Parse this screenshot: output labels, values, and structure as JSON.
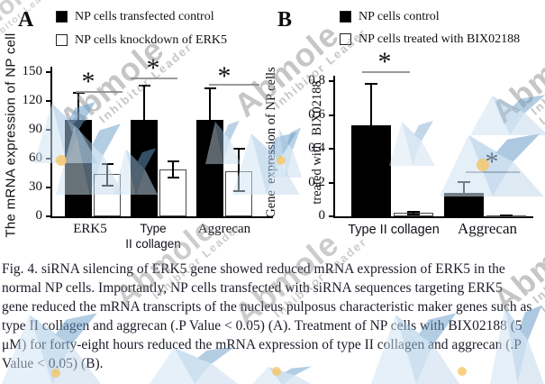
{
  "watermark": {
    "brand": "Abmole",
    "tagline": "Inhibitor Leader"
  },
  "figure": {
    "caption_lines": [
      "Fig. 4. siRNA silencing of ERK5 gene showed reduced mRNA expression of ERK5 in the",
      "normal NP cells. Importantly, NP cells transfected with siRNA sequences targeting ERK5",
      "gene reduced the mRNA transcripts of the nucleus pulposus characteristic maker genes such as",
      "type II collagen and aggrecan (.P Value < 0.05) (A). Treatment of NP cells with BIX02188 (5",
      "μM) for forty-eight hours reduced the mRNA expression of type II collagen and aggrecan (.P",
      "Value < 0.05) (B)."
    ]
  },
  "chart_data": [
    {
      "type": "bar",
      "panel_label": "A",
      "title": "",
      "ylabel": "The mRNA expression of NP cell",
      "ylabel_lines": [
        "The mRNA expression of NP cell"
      ],
      "xlabel": "",
      "ylim": [
        0,
        150
      ],
      "yticks": [
        "0",
        "30",
        "60",
        "90",
        "120",
        "150"
      ],
      "grid": false,
      "legend_position": "top",
      "categories": [
        "ERK5",
        "Type II collagen",
        "Aggrecan"
      ],
      "series": [
        {
          "name": "NP cells transfected control",
          "fill": "#000000",
          "values": [
            100,
            100,
            100
          ],
          "errors_up": [
            29,
            37,
            34
          ],
          "errors_down": [
            0,
            0,
            0
          ]
        },
        {
          "name": "NP cells knockdown of ERK5",
          "fill": "#ffffff",
          "values": [
            44,
            49,
            47
          ],
          "errors_up": [
            11,
            9,
            24
          ],
          "errors_down": [
            13,
            10,
            22
          ]
        }
      ],
      "significance": [
        "*",
        "*",
        "*"
      ]
    },
    {
      "type": "bar",
      "panel_label": "B",
      "title": "",
      "ylabel": "Gene  expression of NP cells treated with  BIX02188",
      "ylabel_lines": [
        "Gene  expression of NP cells",
        "treated with  BIX02188"
      ],
      "xlabel": "",
      "ylim": [
        0,
        0.8
      ],
      "yticks": [
        "0",
        "0.2",
        "0.4",
        "0.6",
        "0.8"
      ],
      "grid": false,
      "legend_position": "top",
      "categories": [
        "Type II collagen",
        "Aggrecan"
      ],
      "series": [
        {
          "name": "NP cells control",
          "fill": "#000000",
          "values": [
            0.54,
            0.14
          ],
          "errors_up": [
            0.25,
            0.07
          ],
          "errors_down": [
            0,
            0
          ]
        },
        {
          "name": "NP cells treated with BIX02188",
          "fill": "#ffffff",
          "values": [
            0.02,
            0.006
          ],
          "errors_up": [
            0.012,
            0.004
          ],
          "errors_down": [
            0.012,
            0.004
          ]
        }
      ],
      "significance": [
        "*",
        "*"
      ]
    }
  ]
}
